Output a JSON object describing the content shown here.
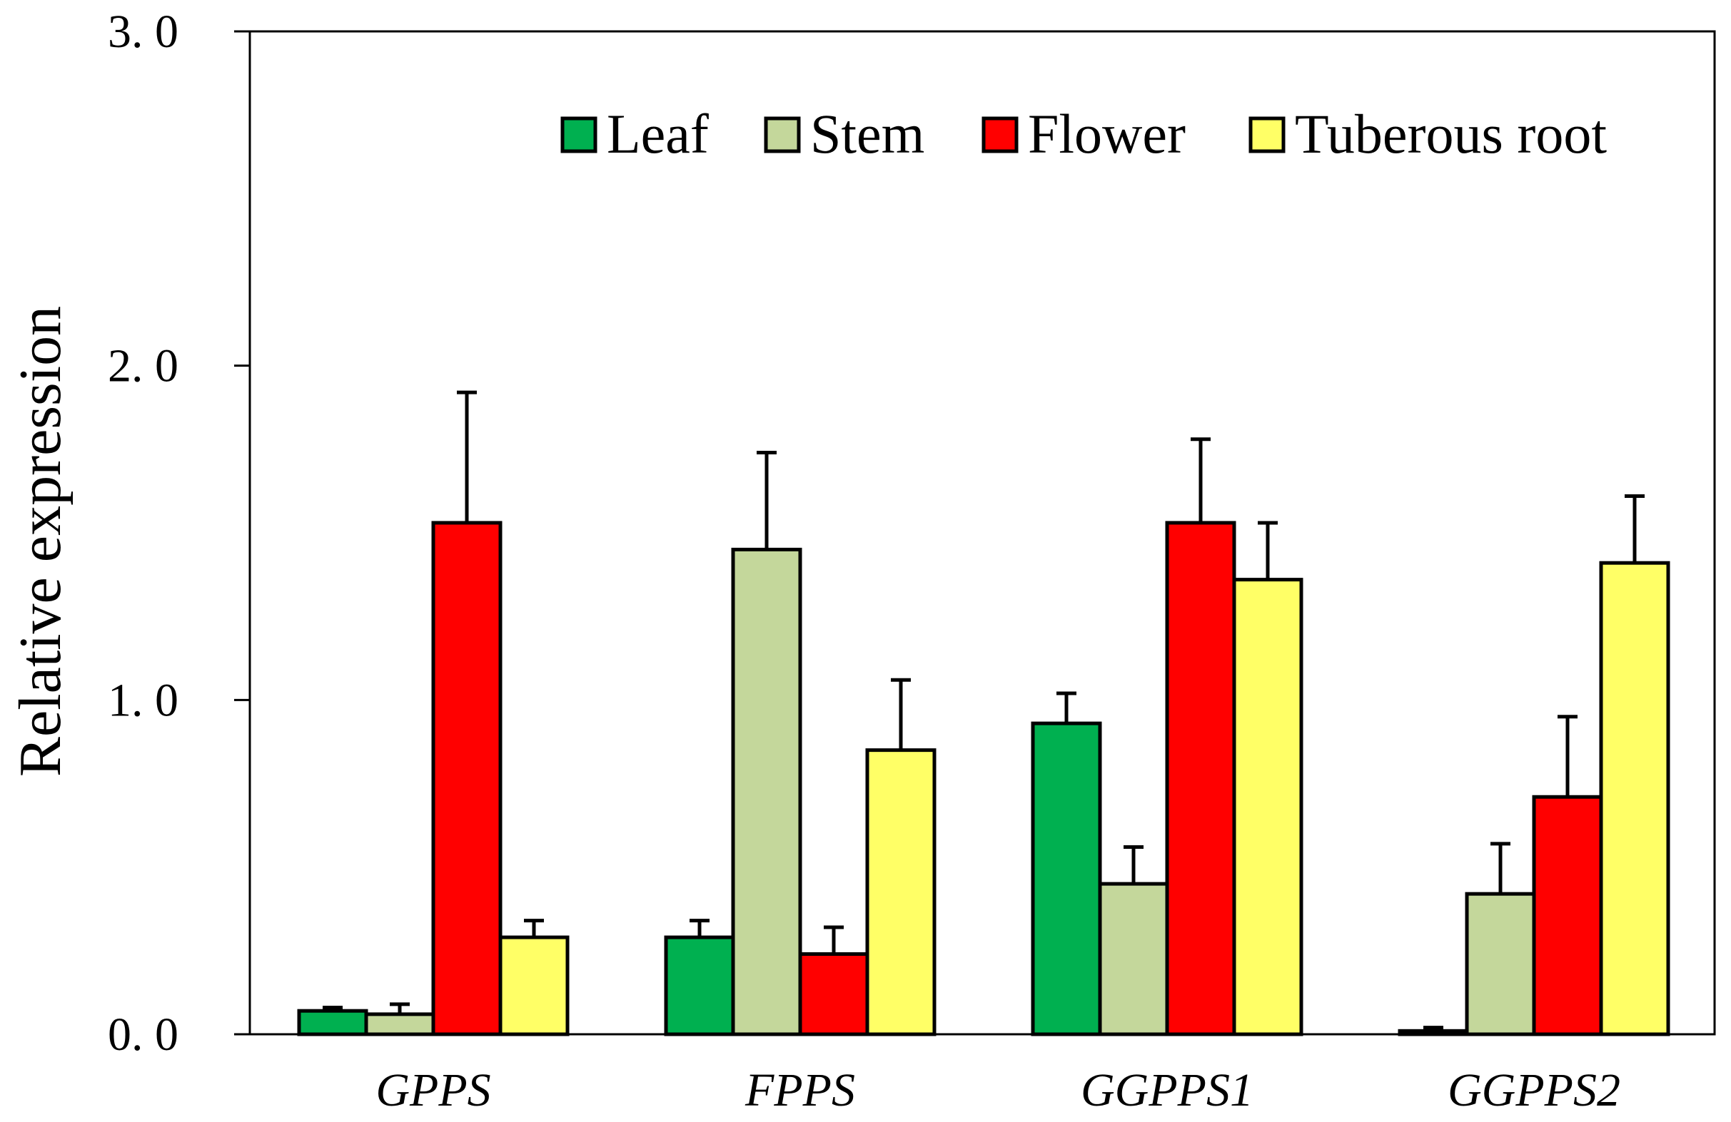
{
  "chart_data": {
    "type": "bar",
    "title": "",
    "xlabel": "",
    "ylabel": "Relative expression",
    "ylim": [
      0,
      3.0
    ],
    "yticks": [
      "0. 0",
      "1. 0",
      "2. 0",
      "3. 0"
    ],
    "ytick_values": [
      0,
      1,
      2,
      3
    ],
    "grid": false,
    "legend_position": "top-right",
    "categories": [
      "GPPS",
      "FPPS",
      "GGPPS1",
      "GGPPS2"
    ],
    "series": [
      {
        "name": "Leaf",
        "color": "#00b050",
        "values": [
          0.07,
          0.29,
          0.93,
          0.01
        ],
        "errors": [
          0.01,
          0.05,
          0.09,
          0.01
        ]
      },
      {
        "name": "Stem",
        "color": "#c4d79b",
        "values": [
          0.06,
          1.45,
          0.45,
          0.42
        ],
        "errors": [
          0.03,
          0.29,
          0.11,
          0.15
        ]
      },
      {
        "name": "Flower",
        "color": "#ff0000",
        "values": [
          1.53,
          0.24,
          1.53,
          0.71
        ],
        "errors": [
          0.39,
          0.08,
          0.25,
          0.24
        ]
      },
      {
        "name": "Tuberous root",
        "color": "#ffff66",
        "values": [
          0.29,
          0.85,
          1.36,
          1.41
        ],
        "errors": [
          0.05,
          0.21,
          0.17,
          0.2
        ]
      }
    ]
  }
}
